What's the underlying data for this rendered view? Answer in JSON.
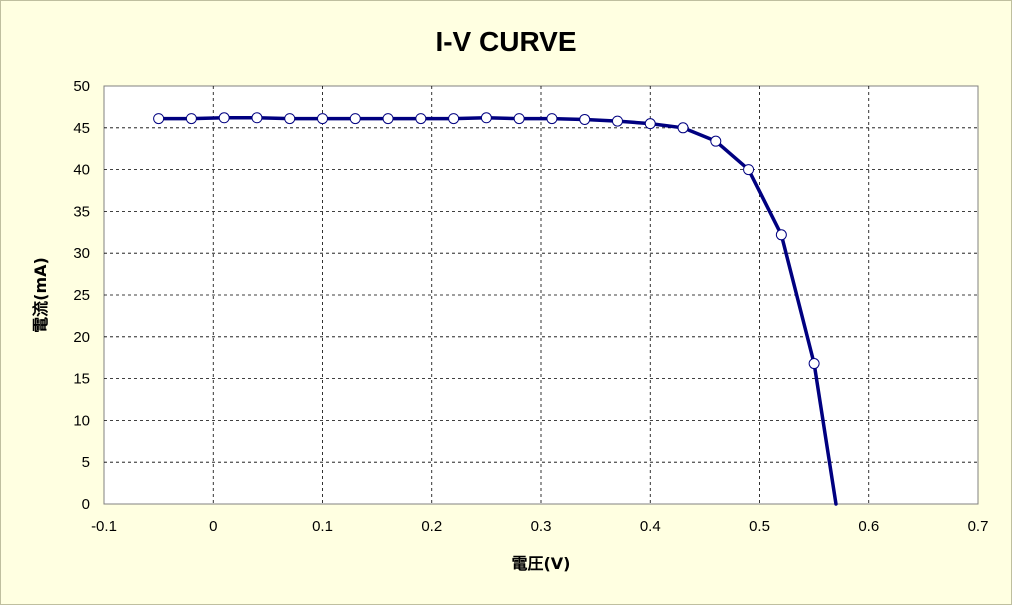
{
  "chart_data": {
    "type": "line",
    "title": "I-V CURVE",
    "xlabel": "電圧(V)",
    "ylabel": "電流(mA)",
    "xlim": [
      -0.1,
      0.7
    ],
    "ylim": [
      0,
      50
    ],
    "x_ticks": [
      "-0.1",
      "0",
      "0.1",
      "0.2",
      "0.3",
      "0.4",
      "0.5",
      "0.6",
      "0.7"
    ],
    "y_ticks": [
      "0",
      "5",
      "10",
      "15",
      "20",
      "25",
      "30",
      "35",
      "40",
      "45",
      "50"
    ],
    "grid": true,
    "legend": "none",
    "colors": {
      "series": "#000080",
      "marker_fill": "#ffffff",
      "background": "#ffffe1",
      "plot_area": "#ffffff"
    },
    "series": [
      {
        "points": [
          [
            -0.05,
            46.1
          ],
          [
            -0.02,
            46.1
          ],
          [
            0.01,
            46.2
          ],
          [
            0.04,
            46.2
          ],
          [
            0.07,
            46.1
          ],
          [
            0.1,
            46.1
          ],
          [
            0.13,
            46.1
          ],
          [
            0.16,
            46.1
          ],
          [
            0.19,
            46.1
          ],
          [
            0.22,
            46.1
          ],
          [
            0.25,
            46.2
          ],
          [
            0.28,
            46.1
          ],
          [
            0.31,
            46.1
          ],
          [
            0.34,
            46.0
          ],
          [
            0.37,
            45.8
          ],
          [
            0.4,
            45.5
          ],
          [
            0.43,
            45.0
          ],
          [
            0.46,
            43.4
          ],
          [
            0.49,
            40.0
          ],
          [
            0.52,
            32.2
          ],
          [
            0.55,
            16.8
          ]
        ],
        "line_end": [
          0.57,
          0
        ]
      }
    ]
  }
}
